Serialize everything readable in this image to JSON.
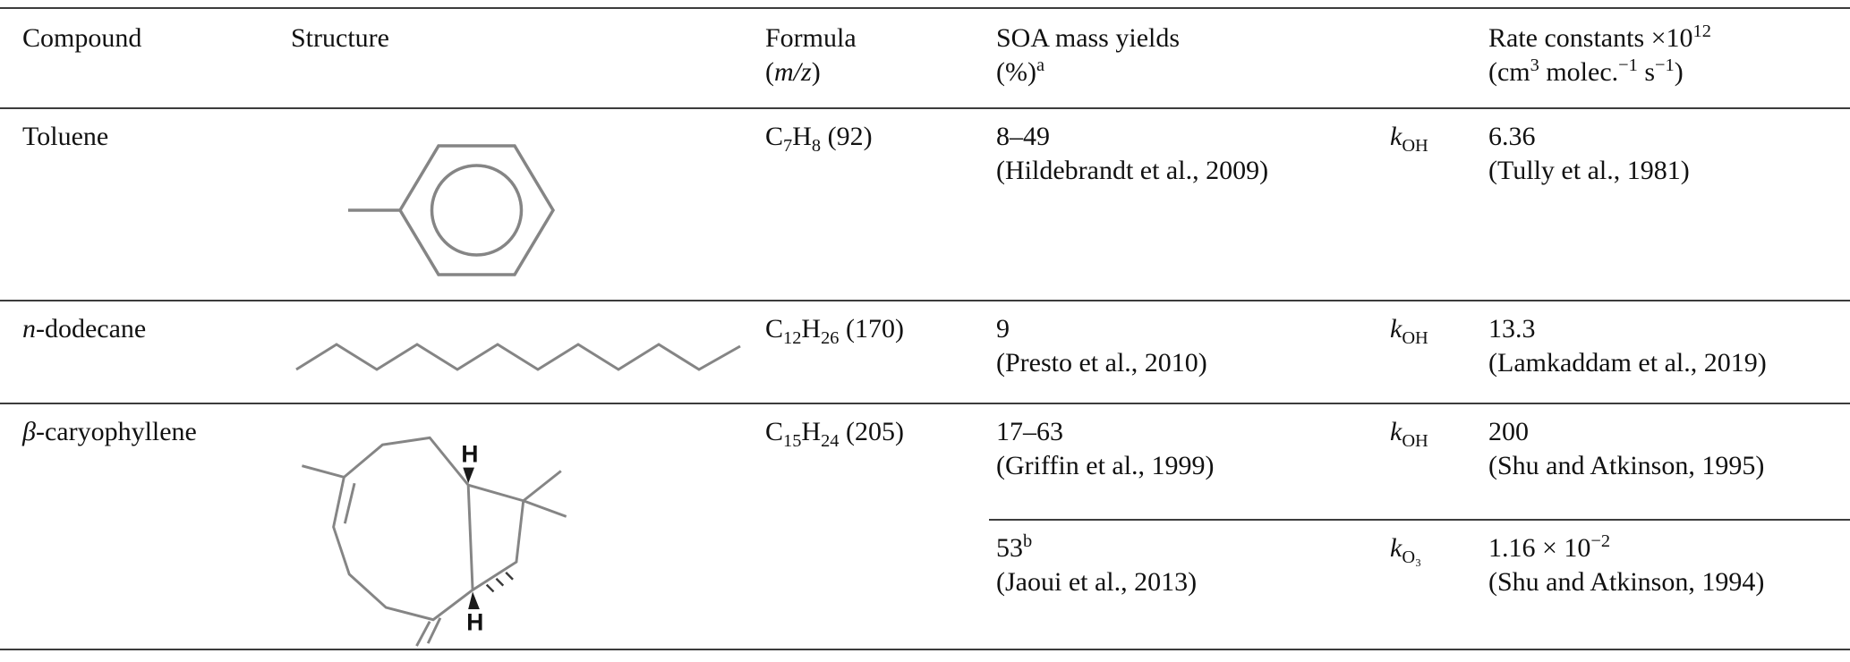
{
  "table": {
    "headers": {
      "compound": [
        {
          "t": "Compound"
        }
      ],
      "structure": [
        {
          "t": "Structure"
        }
      ],
      "formula": [
        {
          "t": "Formula"
        },
        {
          "br": true
        },
        {
          "t": "("
        },
        {
          "i": "m/z"
        },
        {
          "t": ")"
        }
      ],
      "soa": [
        {
          "t": "SOA mass yields"
        },
        {
          "br": true
        },
        {
          "t": "(%)"
        },
        {
          "sup": "a"
        }
      ],
      "rate": [
        {
          "t": "Rate constants ×10"
        },
        {
          "sup": "12"
        },
        {
          "br": true
        },
        {
          "t": "(cm"
        },
        {
          "sup": "3"
        },
        {
          "t": " molec."
        },
        {
          "sup": "−1"
        },
        {
          "t": " s"
        },
        {
          "sup": "−1"
        },
        {
          "t": ")"
        }
      ]
    },
    "rows": [
      {
        "compound": [
          {
            "t": "Toluene"
          }
        ],
        "structure_description": "benzene ring with methyl group",
        "formula": [
          {
            "t": "C"
          },
          {
            "sub": "7"
          },
          {
            "t": "H"
          },
          {
            "sub": "8"
          },
          {
            "t": " (92)"
          }
        ],
        "entries": [
          {
            "yield": [
              {
                "t": "8–49"
              },
              {
                "br": true
              },
              {
                "t": "(Hildebrandt et al., 2009)"
              }
            ],
            "k": [
              {
                "i": "k"
              },
              {
                "sub": "OH"
              }
            ],
            "rate": [
              {
                "t": "6.36"
              },
              {
                "br": true
              },
              {
                "t": "(Tully et al., 1981)"
              }
            ]
          }
        ]
      },
      {
        "compound": [
          {
            "i": "n"
          },
          {
            "t": "-dodecane"
          }
        ],
        "structure_description": "zigzag alkane chain of twelve carbons",
        "formula": [
          {
            "t": "C"
          },
          {
            "sub": "12"
          },
          {
            "t": "H"
          },
          {
            "sub": "26"
          },
          {
            "t": " (170)"
          }
        ],
        "entries": [
          {
            "yield": [
              {
                "t": "9"
              },
              {
                "br": true
              },
              {
                "t": "(Presto et al., 2010)"
              }
            ],
            "k": [
              {
                "i": "k"
              },
              {
                "sub": "OH"
              }
            ],
            "rate": [
              {
                "t": "13.3"
              },
              {
                "br": true
              },
              {
                "t": "(Lamkaddam et al., 2019)"
              }
            ]
          }
        ]
      },
      {
        "compound": [
          {
            "i": "β"
          },
          {
            "t": "-caryophyllene"
          }
        ],
        "structure_description": "bicyclic sesquiterpene: nine-membered ring fused to gem-dimethyl cyclobutane, exocyclic methylene, two stereo H",
        "structure_labels": [
          "H",
          "H"
        ],
        "formula": [
          {
            "t": "C"
          },
          {
            "sub": "15"
          },
          {
            "t": "H"
          },
          {
            "sub": "24"
          },
          {
            "t": " (205)"
          }
        ],
        "entries": [
          {
            "yield": [
              {
                "t": "17–63"
              },
              {
                "br": true
              },
              {
                "t": "(Griffin et al., 1999)"
              }
            ],
            "k": [
              {
                "i": "k"
              },
              {
                "sub": "OH"
              }
            ],
            "rate": [
              {
                "t": "200"
              },
              {
                "br": true
              },
              {
                "t": "(Shu and Atkinson, 1995)"
              }
            ]
          },
          {
            "yield": [
              {
                "t": "53"
              },
              {
                "sup": "b"
              },
              {
                "br": true
              },
              {
                "t": "(Jaoui et al., 2013)"
              }
            ],
            "k": [
              {
                "i": "k"
              },
              {
                "sub": "O₃"
              }
            ],
            "rate": [
              {
                "t": "1.16 × 10"
              },
              {
                "sup": "−2"
              },
              {
                "br": true
              },
              {
                "t": "(Shu and Atkinson, 1994)"
              }
            ]
          }
        ]
      }
    ]
  }
}
